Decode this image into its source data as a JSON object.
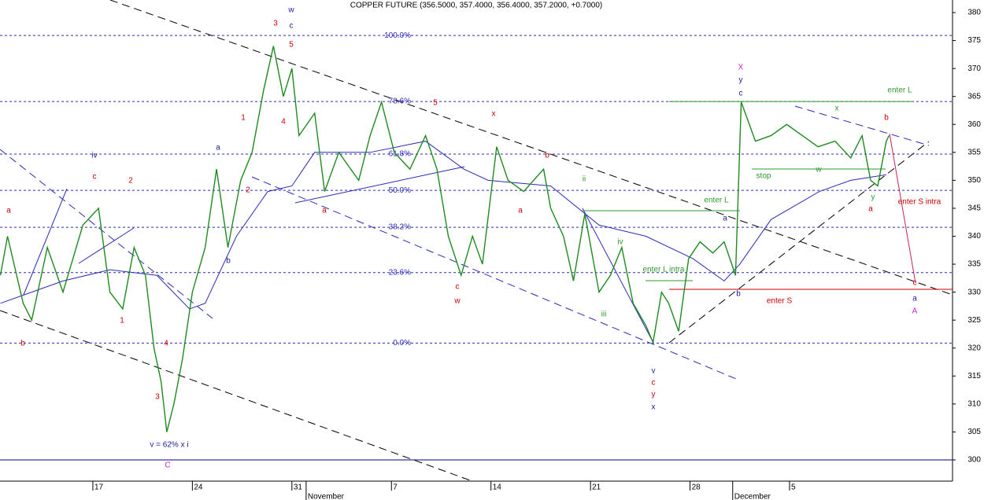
{
  "chart_data": {
    "type": "line",
    "title": "COPPER FUTURE (356.5000, 357.4000, 356.4000, 357.2000, +0.7000)",
    "x": [
      10.5,
      11.0,
      12.1,
      12.7,
      13.8,
      14.9,
      16.3,
      17.4,
      18.2,
      19.1,
      19.9,
      20.7,
      21.3,
      21.8,
      22.2,
      22.7,
      23.3,
      24.0,
      24.9,
      25.7,
      26.5,
      27.4,
      28.2,
      29.0,
      29.7,
      30.4,
      31.0,
      31.5,
      32.6,
      33.3,
      34.3,
      35.7,
      36.5,
      37.3,
      38.2,
      39.3,
      40.4,
      41.2,
      42.0,
      42.9,
      43.7,
      44.4,
      45.4,
      46.2,
      47.3,
      48.7,
      49.2,
      50.1,
      50.8,
      51.6,
      52.6,
      53.4,
      54.2,
      55.0,
      55.9,
      56.4,
      57.0,
      57.5,
      58.2,
      58.9,
      59.7,
      60.6,
      61.4,
      62.2,
      62.6,
      63.6,
      64.7,
      65.8,
      66.9,
      68.0,
      69.2,
      70.3,
      71.1,
      71.7,
      72.2,
      72.8,
      73.0
    ],
    "series": [
      {
        "color": "#1f8a1f",
        "values": [
          333,
          340,
          328,
          325,
          338,
          330,
          342,
          345,
          330,
          327,
          338,
          333,
          320,
          314,
          305,
          310,
          318,
          330,
          338,
          352,
          338,
          350,
          355,
          366,
          374,
          365,
          370,
          358,
          362,
          348,
          355,
          350,
          358,
          364,
          355,
          352,
          358,
          352,
          340,
          333,
          340,
          335,
          356,
          350,
          348,
          352,
          345,
          340,
          332,
          344,
          330,
          333,
          338,
          328,
          324,
          321,
          330,
          328,
          323,
          336,
          339,
          337,
          339,
          333,
          364,
          357,
          358,
          360,
          358,
          356,
          357,
          354,
          358,
          350,
          349,
          357,
          358
        ]
      }
    ],
    "ma": {
      "color": "#2b2bb8",
      "x": [
        10.5,
        12.7,
        14.9,
        18.2,
        21.5,
        23.8,
        24.9,
        27.1,
        29.3,
        31.0,
        32.6,
        36.5,
        40.4,
        43.1,
        44.8,
        49.2,
        52.6,
        55.9,
        59.2,
        61.4,
        62.5,
        64.7,
        68.1,
        70.3,
        72.8
      ],
      "values": [
        328,
        330,
        332,
        334,
        333,
        327,
        328,
        340,
        348,
        349,
        355,
        355,
        357,
        352,
        350,
        349,
        342,
        340,
        336,
        332,
        335,
        343,
        348,
        350,
        351
      ]
    },
    "levels": [
      {
        "label": "100.0%",
        "value": 375.9
      },
      {
        "label": "78.6%",
        "value": 364.1
      },
      {
        "label": "61.8%",
        "value": 354.7
      },
      {
        "label": "50.0%",
        "value": 348.2
      },
      {
        "label": "38.2%",
        "value": 341.6
      },
      {
        "label": "23.6%",
        "value": 333.5
      },
      {
        "label": "0.0%",
        "value": 320.9
      }
    ],
    "hlines": [
      {
        "value": 300,
        "color": "#00008b"
      },
      {
        "value": 330.5,
        "color": "#cc0000"
      },
      {
        "value": 364.1,
        "color": "#2e9a2e"
      }
    ],
    "annotations": [
      "3",
      "w",
      "c",
      "5",
      "1",
      "2",
      "4",
      "a",
      "b",
      "a",
      "iv",
      "c",
      "a",
      "2",
      "1",
      "b",
      "4",
      "3",
      "v = 62% x i",
      "C",
      "x",
      "c",
      "w",
      "a",
      "b",
      "5",
      "ii",
      "iv",
      "i",
      "iii",
      "v",
      "c",
      "y",
      "x",
      "enter L intra",
      "enter L",
      "a",
      "b",
      "enter S",
      "X",
      "y",
      "c",
      "enter L",
      "b",
      "x",
      "w",
      "stop",
      "y",
      "a",
      "enter S intra",
      "c",
      "a",
      "A"
    ],
    "xlim": [
      10.47,
      77.46
    ],
    "xticks": [
      {
        "value": 17,
        "label": "17"
      },
      {
        "value": 24,
        "label": "24"
      },
      {
        "value": 31,
        "label": "31"
      },
      {
        "value": 38,
        "label": "7"
      },
      {
        "value": 45,
        "label": "14"
      },
      {
        "value": 52,
        "label": "21"
      },
      {
        "value": 59,
        "label": "28"
      },
      {
        "value": 66,
        "label": "5"
      }
    ],
    "months": [
      {
        "value": 32,
        "label": "November"
      },
      {
        "value": 62,
        "label": "December"
      }
    ],
    "ylim": [
      296.2,
      382.25
    ],
    "yticks": [
      300,
      305,
      310,
      315,
      320,
      325,
      330,
      335,
      340,
      345,
      350,
      355,
      360,
      365,
      370,
      375,
      380
    ]
  }
}
